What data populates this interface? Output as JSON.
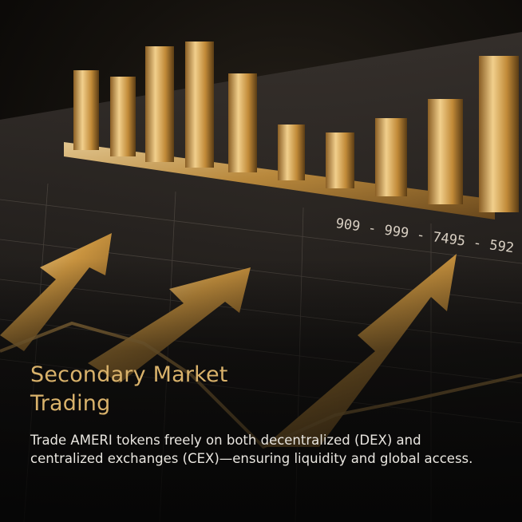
{
  "card": {
    "title_line1": "Secondary Market",
    "title_line2": "Trading",
    "description": "Trade AMERI tokens freely on both decentralized (DEX) and centralized exchanges (CEX)—ensuring liquidity and global access."
  },
  "colors": {
    "accent_gold": "#d9b26b",
    "body_text": "#e9e6e0",
    "background": "#0b0a08"
  },
  "artwork": {
    "subject": "gold-bar-chart-with-rising-arrows",
    "figure": "909 - 999 - 7495 - 592"
  }
}
